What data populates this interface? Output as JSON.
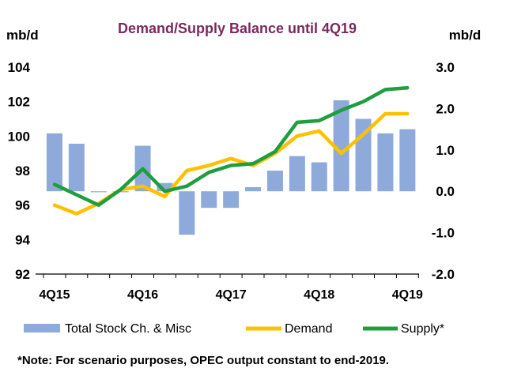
{
  "chart_data": {
    "type": "bar+line",
    "title": "Demand/Supply Balance until 4Q19",
    "y_left_unit": "mb/d",
    "y_right_unit": "mb/d",
    "y_left_ticks": [
      "92",
      "94",
      "96",
      "98",
      "100",
      "102",
      "104"
    ],
    "y_right_ticks": [
      "-2.0",
      "-1.0",
      "0.0",
      "1.0",
      "2.0",
      "3.0"
    ],
    "y_left_range": [
      92,
      104
    ],
    "y_right_range": [
      -2.0,
      3.0
    ],
    "x_tick_labels": [
      "4Q15",
      "4Q16",
      "4Q17",
      "4Q18",
      "4Q19"
    ],
    "periods": [
      "4Q15",
      "1Q16",
      "2Q16",
      "3Q16",
      "4Q16",
      "1Q17",
      "2Q17",
      "3Q17",
      "4Q17",
      "1Q18",
      "2Q18",
      "3Q18",
      "4Q18",
      "1Q19",
      "2Q19",
      "3Q19",
      "4Q19"
    ],
    "series": [
      {
        "name": "Total Stock Ch. & Misc",
        "kind": "bar",
        "axis": "right",
        "color": "#8eaadb",
        "values": [
          1.4,
          1.15,
          -0.02,
          0.0,
          1.1,
          0.2,
          -1.05,
          -0.4,
          -0.4,
          0.1,
          0.5,
          0.85,
          0.7,
          2.2,
          1.75,
          1.4,
          1.5
        ]
      },
      {
        "name": "Demand",
        "kind": "line",
        "axis": "left",
        "color": "#ffc000",
        "values": [
          96.0,
          95.5,
          96.1,
          96.9,
          97.1,
          96.5,
          98.0,
          98.3,
          98.7,
          98.3,
          99.0,
          100.0,
          100.3,
          99.0,
          100.1,
          101.3,
          101.3
        ]
      },
      {
        "name": "Supply*",
        "kind": "line",
        "axis": "left",
        "color": "#1e9e3e",
        "values": [
          97.2,
          96.6,
          96.0,
          96.9,
          98.1,
          96.8,
          97.1,
          97.9,
          98.3,
          98.4,
          99.1,
          100.8,
          100.9,
          101.5,
          102.0,
          102.7,
          102.8
        ]
      }
    ],
    "legend": "bottom",
    "grid": false
  },
  "note": "*Note: For scenario purposes, OPEC output constant to end-2019."
}
